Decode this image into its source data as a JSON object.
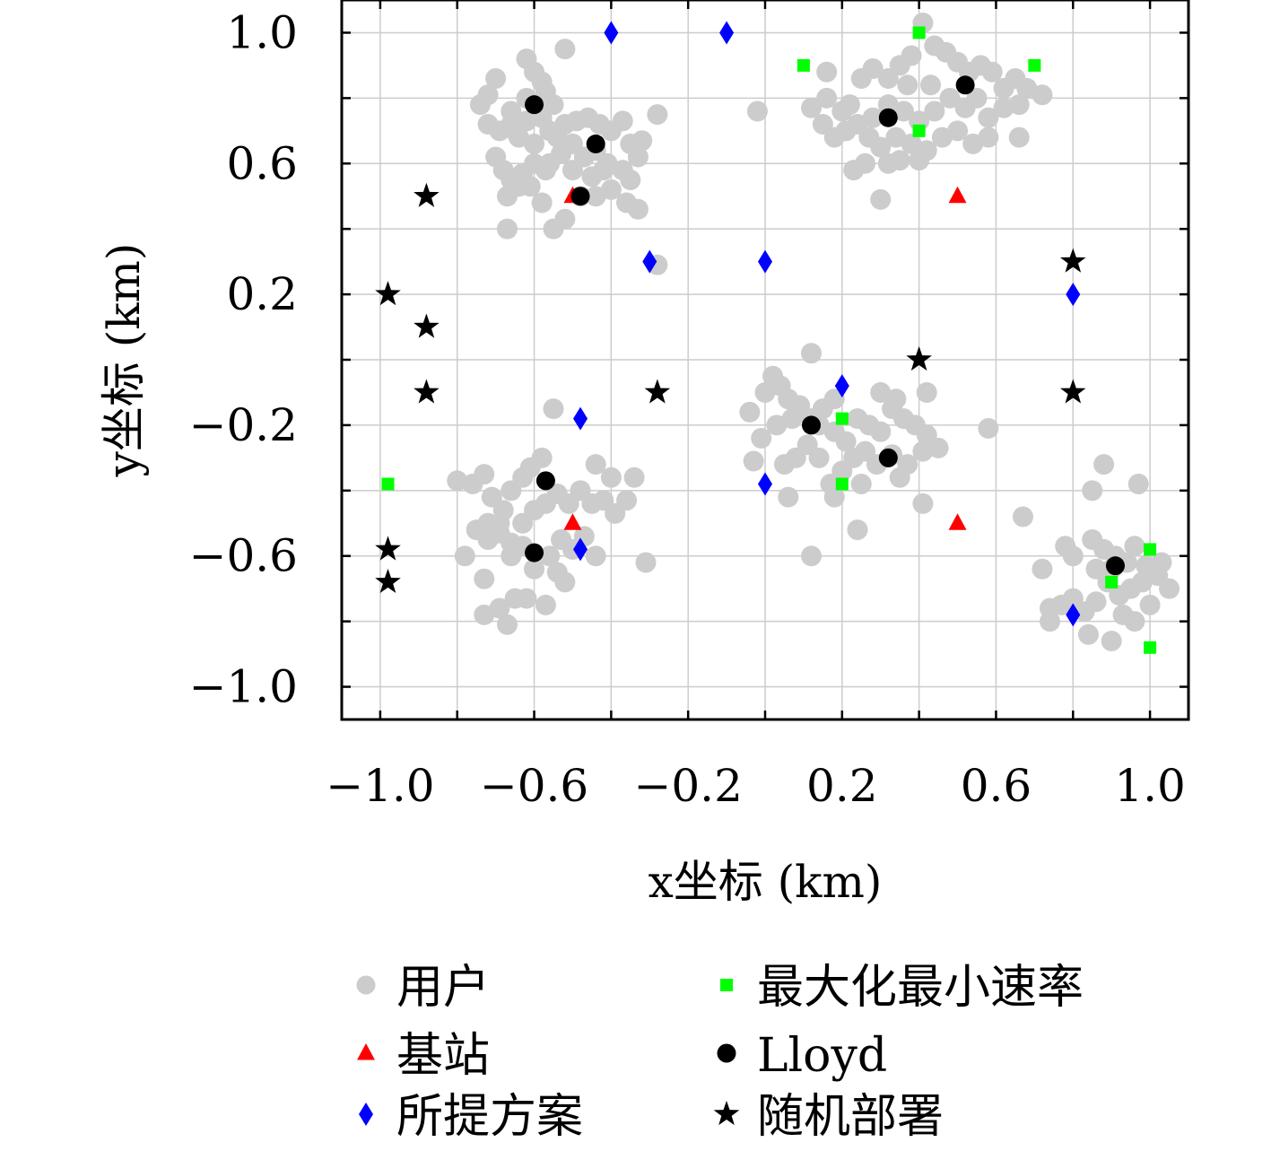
{
  "chart_data": {
    "type": "scatter",
    "title": "",
    "xlabel": "x坐标 (km)",
    "ylabel": "y坐标 (km)",
    "xlim": [
      -1.1,
      1.1
    ],
    "ylim": [
      -1.1,
      1.1
    ],
    "xticks": [
      -1.0,
      -0.6,
      -0.2,
      0.2,
      0.6,
      1.0
    ],
    "yticks": [
      -1.0,
      -0.6,
      -0.2,
      0.2,
      0.6,
      1.0
    ],
    "xtick_labels": [
      "−1.0",
      "−0.6",
      "−0.2",
      "0.2",
      "0.6",
      "1.0"
    ],
    "ytick_labels": [
      "−1.0",
      "−0.6",
      "−0.2",
      "0.2",
      "0.6",
      "1.0"
    ],
    "grid": true,
    "legend_position": "bottom",
    "series": [
      {
        "name": "用户",
        "marker": "circle",
        "color": "#cccccc",
        "points": [
          [
            -0.62,
            0.92
          ],
          [
            -0.6,
            0.88
          ],
          [
            -0.58,
            0.85
          ],
          [
            -0.52,
            0.95
          ],
          [
            -0.7,
            0.86
          ],
          [
            -0.72,
            0.81
          ],
          [
            -0.74,
            0.78
          ],
          [
            -0.72,
            0.72
          ],
          [
            -0.69,
            0.7
          ],
          [
            -0.66,
            0.72
          ],
          [
            -0.64,
            0.68
          ],
          [
            -0.6,
            0.66
          ],
          [
            -0.56,
            0.7
          ],
          [
            -0.55,
            0.78
          ],
          [
            -0.52,
            0.72
          ],
          [
            -0.49,
            0.73
          ],
          [
            -0.46,
            0.74
          ],
          [
            -0.43,
            0.72
          ],
          [
            -0.4,
            0.7
          ],
          [
            -0.37,
            0.73
          ],
          [
            -0.35,
            0.66
          ],
          [
            -0.32,
            0.67
          ],
          [
            -0.28,
            0.75
          ],
          [
            -0.33,
            0.62
          ],
          [
            -0.37,
            0.58
          ],
          [
            -0.41,
            0.6
          ],
          [
            -0.45,
            0.56
          ],
          [
            -0.5,
            0.58
          ],
          [
            -0.53,
            0.63
          ],
          [
            -0.57,
            0.58
          ],
          [
            -0.6,
            0.6
          ],
          [
            -0.63,
            0.57
          ],
          [
            -0.66,
            0.55
          ],
          [
            -0.68,
            0.58
          ],
          [
            -0.7,
            0.62
          ],
          [
            -0.67,
            0.5
          ],
          [
            -0.64,
            0.53
          ],
          [
            -0.61,
            0.53
          ],
          [
            -0.58,
            0.48
          ],
          [
            -0.55,
            0.4
          ],
          [
            -0.52,
            0.43
          ],
          [
            -0.48,
            0.5
          ],
          [
            -0.44,
            0.5
          ],
          [
            -0.4,
            0.52
          ],
          [
            -0.35,
            0.55
          ],
          [
            -0.33,
            0.46
          ],
          [
            -0.36,
            0.48
          ],
          [
            -0.67,
            0.4
          ],
          [
            -0.65,
            0.7
          ],
          [
            -0.62,
            0.73
          ],
          [
            -0.58,
            0.74
          ],
          [
            -0.54,
            0.68
          ],
          [
            -0.5,
            0.66
          ],
          [
            -0.47,
            0.62
          ],
          [
            -0.44,
            0.64
          ],
          [
            -0.42,
            0.58
          ],
          [
            -0.56,
            0.6
          ],
          [
            -0.62,
            0.8
          ],
          [
            -0.57,
            0.82
          ],
          [
            -0.66,
            0.76
          ],
          [
            0.22,
            0.78
          ],
          [
            0.25,
            0.86
          ],
          [
            0.28,
            0.89
          ],
          [
            0.32,
            0.86
          ],
          [
            0.35,
            0.9
          ],
          [
            0.38,
            0.93
          ],
          [
            0.41,
            1.03
          ],
          [
            0.44,
            0.96
          ],
          [
            0.47,
            0.94
          ],
          [
            0.5,
            0.91
          ],
          [
            0.53,
            0.88
          ],
          [
            0.56,
            0.9
          ],
          [
            0.59,
            0.88
          ],
          [
            0.62,
            0.83
          ],
          [
            0.65,
            0.86
          ],
          [
            0.68,
            0.83
          ],
          [
            0.72,
            0.81
          ],
          [
            0.66,
            0.78
          ],
          [
            0.62,
            0.77
          ],
          [
            0.58,
            0.74
          ],
          [
            0.55,
            0.8
          ],
          [
            0.52,
            0.77
          ],
          [
            0.48,
            0.8
          ],
          [
            0.44,
            0.76
          ],
          [
            0.4,
            0.73
          ],
          [
            0.36,
            0.76
          ],
          [
            0.32,
            0.78
          ],
          [
            0.28,
            0.74
          ],
          [
            0.24,
            0.72
          ],
          [
            0.21,
            0.7
          ],
          [
            0.18,
            0.68
          ],
          [
            0.15,
            0.72
          ],
          [
            0.12,
            0.77
          ],
          [
            0.16,
            0.8
          ],
          [
            0.2,
            0.76
          ],
          [
            0.27,
            0.68
          ],
          [
            0.3,
            0.65
          ],
          [
            0.34,
            0.68
          ],
          [
            0.38,
            0.66
          ],
          [
            0.42,
            0.64
          ],
          [
            0.46,
            0.68
          ],
          [
            0.5,
            0.7
          ],
          [
            0.54,
            0.66
          ],
          [
            0.58,
            0.68
          ],
          [
            0.35,
            0.61
          ],
          [
            0.4,
            0.61
          ],
          [
            0.32,
            0.6
          ],
          [
            0.26,
            0.6
          ],
          [
            0.23,
            0.58
          ],
          [
            0.43,
            0.84
          ],
          [
            0.37,
            0.84
          ],
          [
            -0.02,
            0.76
          ],
          [
            0.16,
            0.88
          ],
          [
            0.66,
            0.68
          ],
          [
            0.3,
            0.49
          ],
          [
            -0.28,
            0.29
          ],
          [
            -0.8,
            -0.37
          ],
          [
            -0.76,
            -0.38
          ],
          [
            -0.73,
            -0.35
          ],
          [
            -0.71,
            -0.42
          ],
          [
            -0.68,
            -0.46
          ],
          [
            -0.72,
            -0.5
          ],
          [
            -0.75,
            -0.52
          ],
          [
            -0.72,
            -0.55
          ],
          [
            -0.69,
            -0.53
          ],
          [
            -0.66,
            -0.56
          ],
          [
            -0.63,
            -0.5
          ],
          [
            -0.6,
            -0.46
          ],
          [
            -0.57,
            -0.44
          ],
          [
            -0.54,
            -0.41
          ],
          [
            -0.51,
            -0.44
          ],
          [
            -0.48,
            -0.4
          ],
          [
            -0.45,
            -0.44
          ],
          [
            -0.42,
            -0.43
          ],
          [
            -0.39,
            -0.47
          ],
          [
            -0.36,
            -0.43
          ],
          [
            -0.34,
            -0.36
          ],
          [
            -0.4,
            -0.36
          ],
          [
            -0.44,
            -0.32
          ],
          [
            -0.55,
            -0.15
          ],
          [
            -0.58,
            -0.3
          ],
          [
            -0.61,
            -0.33
          ],
          [
            -0.63,
            -0.36
          ],
          [
            -0.66,
            -0.4
          ],
          [
            -0.69,
            -0.5
          ],
          [
            -0.66,
            -0.6
          ],
          [
            -0.63,
            -0.57
          ],
          [
            -0.6,
            -0.64
          ],
          [
            -0.56,
            -0.6
          ],
          [
            -0.53,
            -0.55
          ],
          [
            -0.5,
            -0.58
          ],
          [
            -0.47,
            -0.54
          ],
          [
            -0.44,
            -0.6
          ],
          [
            -0.54,
            -0.65
          ],
          [
            -0.31,
            -0.62
          ],
          [
            -0.73,
            -0.67
          ],
          [
            -0.69,
            -0.76
          ],
          [
            -0.65,
            -0.73
          ],
          [
            -0.62,
            -0.73
          ],
          [
            -0.57,
            -0.75
          ],
          [
            -0.52,
            -0.68
          ],
          [
            -0.67,
            -0.81
          ],
          [
            -0.73,
            -0.78
          ],
          [
            -0.78,
            -0.6
          ],
          [
            -0.03,
            -0.31
          ],
          [
            0.0,
            -0.1
          ],
          [
            0.02,
            -0.05
          ],
          [
            0.04,
            -0.08
          ],
          [
            0.06,
            -0.12
          ],
          [
            0.09,
            -0.14
          ],
          [
            0.12,
            -0.18
          ],
          [
            0.15,
            -0.15
          ],
          [
            0.18,
            -0.22
          ],
          [
            0.21,
            -0.25
          ],
          [
            0.24,
            -0.18
          ],
          [
            0.27,
            -0.2
          ],
          [
            0.3,
            -0.22
          ],
          [
            0.33,
            -0.15
          ],
          [
            0.36,
            -0.18
          ],
          [
            0.39,
            -0.2
          ],
          [
            0.42,
            -0.23
          ],
          [
            0.45,
            -0.27
          ],
          [
            0.41,
            -0.28
          ],
          [
            0.37,
            -0.32
          ],
          [
            0.33,
            -0.29
          ],
          [
            0.29,
            -0.32
          ],
          [
            0.26,
            -0.28
          ],
          [
            0.23,
            -0.3
          ],
          [
            0.2,
            -0.34
          ],
          [
            0.17,
            -0.38
          ],
          [
            0.14,
            -0.3
          ],
          [
            0.11,
            -0.26
          ],
          [
            0.08,
            -0.3
          ],
          [
            0.05,
            -0.32
          ],
          [
            0.07,
            -0.18
          ],
          [
            0.03,
            -0.2
          ],
          [
            -0.01,
            -0.24
          ],
          [
            -0.04,
            -0.16
          ],
          [
            0.12,
            0.02
          ],
          [
            0.18,
            -0.42
          ],
          [
            0.42,
            -0.1
          ],
          [
            0.58,
            -0.21
          ],
          [
            0.24,
            -0.52
          ],
          [
            0.12,
            -0.6
          ],
          [
            0.41,
            -0.44
          ],
          [
            0.35,
            -0.36
          ],
          [
            0.25,
            -0.38
          ],
          [
            0.06,
            -0.42
          ],
          [
            0.18,
            -0.12
          ],
          [
            0.14,
            -0.2
          ],
          [
            0.3,
            -0.1
          ],
          [
            0.34,
            -0.12
          ],
          [
            0.85,
            -0.55
          ],
          [
            0.88,
            -0.58
          ],
          [
            0.91,
            -0.6
          ],
          [
            0.94,
            -0.62
          ],
          [
            0.96,
            -0.57
          ],
          [
            0.99,
            -0.63
          ],
          [
            1.02,
            -0.66
          ],
          [
            1.05,
            -0.7
          ],
          [
            1.03,
            -0.62
          ],
          [
            0.98,
            -0.68
          ],
          [
            0.95,
            -0.7
          ],
          [
            0.92,
            -0.72
          ],
          [
            0.89,
            -0.68
          ],
          [
            0.86,
            -0.74
          ],
          [
            0.83,
            -0.77
          ],
          [
            0.8,
            -0.73
          ],
          [
            0.77,
            -0.75
          ],
          [
            0.74,
            -0.76
          ],
          [
            0.72,
            -0.64
          ],
          [
            0.78,
            -0.57
          ],
          [
            0.85,
            -0.4
          ],
          [
            0.88,
            -0.32
          ],
          [
            0.97,
            -0.38
          ],
          [
            0.67,
            -0.48
          ],
          [
            0.74,
            -0.8
          ],
          [
            0.84,
            -0.84
          ],
          [
            0.9,
            -0.86
          ],
          [
            0.96,
            -0.8
          ],
          [
            1.0,
            -0.75
          ],
          [
            0.93,
            -0.78
          ],
          [
            0.8,
            -0.6
          ],
          [
            0.86,
            -0.64
          ],
          [
            0.9,
            -0.64
          ]
        ]
      },
      {
        "name": "基站",
        "marker": "triangle",
        "color": "#ff0000",
        "points": [
          [
            -0.5,
            0.5
          ],
          [
            0.5,
            0.5
          ],
          [
            -0.5,
            -0.5
          ],
          [
            0.5,
            -0.5
          ]
        ]
      },
      {
        "name": "所提方案",
        "marker": "diamond",
        "color": "#0000ff",
        "points": [
          [
            -0.4,
            1.0
          ],
          [
            -0.1,
            1.0
          ],
          [
            -0.3,
            0.3
          ],
          [
            0.0,
            0.3
          ],
          [
            0.8,
            0.2
          ],
          [
            -0.48,
            -0.18
          ],
          [
            0.2,
            -0.08
          ],
          [
            0.0,
            -0.38
          ],
          [
            -0.48,
            -0.58
          ],
          [
            0.8,
            -0.78
          ]
        ]
      },
      {
        "name": "最大化最小速率",
        "marker": "square",
        "color": "#00ff00",
        "points": [
          [
            0.4,
            1.0
          ],
          [
            0.1,
            0.9
          ],
          [
            0.7,
            0.9
          ],
          [
            0.4,
            0.7
          ],
          [
            -0.98,
            -0.38
          ],
          [
            0.2,
            -0.18
          ],
          [
            0.2,
            -0.38
          ],
          [
            1.0,
            -0.58
          ],
          [
            0.9,
            -0.68
          ],
          [
            1.0,
            -0.88
          ]
        ]
      },
      {
        "name": "Lloyd",
        "marker": "circle",
        "color": "#000000",
        "points": [
          [
            -0.6,
            0.78
          ],
          [
            -0.44,
            0.66
          ],
          [
            -0.48,
            0.5
          ],
          [
            0.52,
            0.84
          ],
          [
            0.32,
            0.74
          ],
          [
            -0.57,
            -0.37
          ],
          [
            -0.6,
            -0.59
          ],
          [
            0.12,
            -0.2
          ],
          [
            0.32,
            -0.3
          ],
          [
            0.91,
            -0.63
          ]
        ]
      },
      {
        "name": "随机部署",
        "marker": "star",
        "color": "#000000",
        "points": [
          [
            -0.88,
            0.5
          ],
          [
            -0.98,
            0.2
          ],
          [
            -0.88,
            0.1
          ],
          [
            -0.88,
            -0.1
          ],
          [
            -0.28,
            -0.1
          ],
          [
            0.4,
            0.0
          ],
          [
            0.8,
            0.3
          ],
          [
            0.8,
            -0.1
          ],
          [
            -0.98,
            -0.58
          ],
          [
            -0.98,
            -0.68
          ]
        ]
      }
    ]
  }
}
